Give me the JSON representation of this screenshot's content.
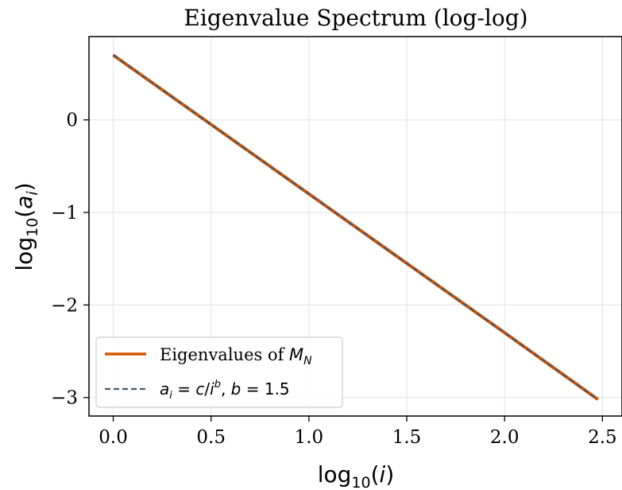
{
  "chart_data": {
    "type": "line",
    "title": "Eigenvalue Spectrum (log-log)",
    "xlabel": "log10(i)",
    "ylabel": "log10(a_i)",
    "xlim": [
      -0.124,
      2.6
    ],
    "ylim": [
      -3.2,
      0.9
    ],
    "x_ticks": [
      0.0,
      0.5,
      1.0,
      1.5,
      2.0,
      2.5
    ],
    "x_tick_labels": [
      "0.0",
      "0.5",
      "1.0",
      "1.5",
      "2.0",
      "2.5"
    ],
    "y_ticks": [
      0,
      -1,
      -2,
      -3
    ],
    "y_tick_labels": [
      "0",
      "−1",
      "−2",
      "−3"
    ],
    "grid": true,
    "legend_position": "lower-left",
    "series": [
      {
        "name": "Eigenvalues of M_N",
        "style": "solid",
        "color": "#d35400",
        "x": [
          0.0,
          0.5,
          1.0,
          1.5,
          2.0,
          2.477
        ],
        "y": [
          0.7,
          -0.05,
          -0.8,
          -1.55,
          -2.3,
          -3.02
        ]
      },
      {
        "name": "a_i = c/i^b, b = 1.5",
        "style": "dashed",
        "color": "#4a5b6e",
        "x": [
          0.0,
          0.5,
          1.0,
          1.5,
          2.0,
          2.477
        ],
        "y": [
          0.7,
          -0.05,
          -0.8,
          -1.55,
          -2.3,
          -3.02
        ]
      }
    ]
  }
}
